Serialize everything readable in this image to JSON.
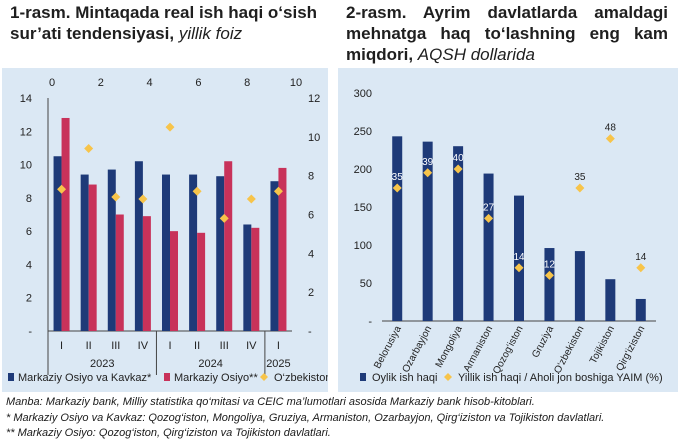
{
  "panel1": {
    "title_bold": "1-rasm. Mintaqada real ish haqi o‘sish sur’ati tendensiyasi,",
    "title_italic": "yillik foiz"
  },
  "panel2": {
    "title_bold": "2-rasm. Ayrim davlatlarda amaldagi mehnatga haq to‘lashning eng kam miqdori,",
    "title_italic": "AQSH dollarida"
  },
  "chart_data": [
    {
      "type": "bar",
      "title": "",
      "categories": [
        "I",
        "II",
        "III",
        "IV",
        "I",
        "II",
        "III",
        "IV",
        "I"
      ],
      "groups": [
        {
          "label": "2023",
          "span": 4
        },
        {
          "label": "2024",
          "span": 4
        },
        {
          "label": "2025",
          "span": 1
        }
      ],
      "left_axis": {
        "ylim": [
          0,
          14
        ],
        "ticks": [
          "-",
          "2",
          "4",
          "6",
          "8",
          "10",
          "12",
          "14"
        ]
      },
      "right_axis": {
        "ylim": [
          0,
          12
        ],
        "ticks": [
          "-",
          "2",
          "4",
          "6",
          "8",
          "10",
          "12"
        ]
      },
      "top_axis": {
        "xlim": [
          0,
          10
        ],
        "ticks": [
          "0",
          "2",
          "4",
          "6",
          "8",
          "10"
        ]
      },
      "series": [
        {
          "name": "Markaziy Osiyo va Kavkaz*",
          "color": "#1e3a78",
          "axis": "left",
          "values": [
            10.5,
            9.4,
            9.7,
            10.2,
            9.4,
            9.4,
            9.3,
            6.4,
            9.0
          ]
        },
        {
          "name": "Markaziy Osiyo**",
          "color": "#c8325a",
          "axis": "left",
          "values": [
            12.8,
            8.8,
            7.0,
            6.9,
            6.0,
            5.9,
            10.2,
            6.2,
            9.8
          ]
        },
        {
          "name": "O‘zbekiston",
          "color": "#f7c44a",
          "axis": "right",
          "marker": "diamond",
          "values": [
            7.3,
            9.4,
            6.9,
            6.8,
            10.5,
            7.2,
            5.8,
            6.8,
            7.2
          ]
        }
      ]
    },
    {
      "type": "bar",
      "title": "",
      "categories": [
        "Belorusiya",
        "Ozarbayjon",
        "Mongoliya",
        "Armaniston",
        "Qozog‘iston",
        "Gruziya",
        "O‘zbekiston",
        "Tojikiston",
        "Qirg‘iziston"
      ],
      "ylim": [
        0,
        300
      ],
      "yticks": [
        "-",
        "50",
        "100",
        "150",
        "200",
        "250",
        "300"
      ],
      "series": [
        {
          "name": "Oylik ish haqi",
          "color": "#1e3a78",
          "values": [
            243,
            236,
            230,
            194,
            165,
            96,
            92,
            55,
            29
          ]
        },
        {
          "name": "Yillik ish haqi / Aholi jon boshiga YAIM (%)",
          "color": "#f7c44a",
          "marker": "diamond",
          "values": [
            35,
            39,
            40,
            27,
            14,
            12,
            35,
            48,
            14
          ],
          "labels": [
            "35",
            "39",
            "40",
            "27",
            "14",
            "12",
            "35",
            "48",
            "14"
          ]
        }
      ]
    }
  ],
  "source": {
    "line1": "Manba: Markaziy bank, Milliy statistika qo‘mitasi va CEIC ma’lumotlari asosida Markaziy bank hisob-kitoblari.",
    "line2": "* Markaziy Osiyo va Kavkaz: Qozog‘iston, Mongoliya, Gruziya, Armaniston, Ozarbayjon, Qirg‘iziston va Tojikiston davlatlari.",
    "line3": "** Markaziy Osiyo: Qozog‘iston, Qirg‘iziston va Tojikiston davlatlari."
  }
}
